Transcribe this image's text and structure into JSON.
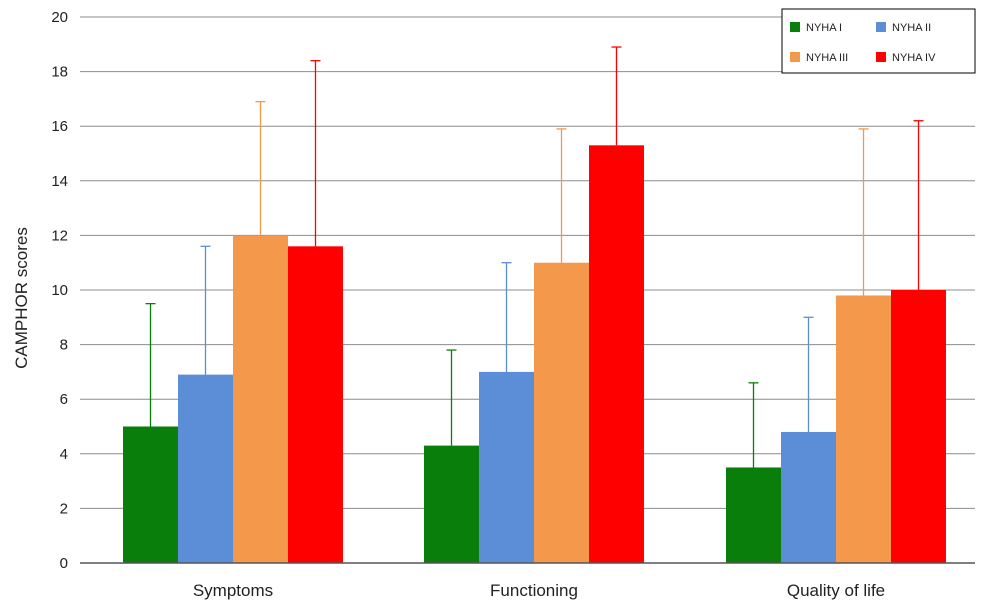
{
  "chart_data": {
    "type": "bar",
    "ylabel": "CAMPHOR scores",
    "ylim": [
      0,
      20
    ],
    "yticks": [
      0,
      2,
      4,
      6,
      8,
      10,
      12,
      14,
      16,
      18,
      20
    ],
    "grid": true,
    "legend_position": "top-right",
    "categories": [
      "Symptoms",
      "Functioning",
      "Quality of life"
    ],
    "series": [
      {
        "name": "NYHA I",
        "color": "#0a7e0a",
        "values": [
          5.0,
          4.3,
          3.5
        ],
        "error_upper": [
          9.5,
          7.8,
          6.6
        ]
      },
      {
        "name": "NYHA II",
        "color": "#5b8ed6",
        "values": [
          6.9,
          7.0,
          4.8
        ],
        "error_upper": [
          11.6,
          11.0,
          9.0
        ]
      },
      {
        "name": "NYHA III",
        "color": "#f4984c",
        "values": [
          12.0,
          11.0,
          9.8
        ],
        "error_upper": [
          16.9,
          15.9,
          15.9
        ]
      },
      {
        "name": "NYHA IV",
        "color": "#ff0000",
        "values": [
          11.6,
          15.3,
          10.0
        ],
        "error_upper": [
          18.4,
          18.9,
          16.2
        ]
      }
    ]
  }
}
